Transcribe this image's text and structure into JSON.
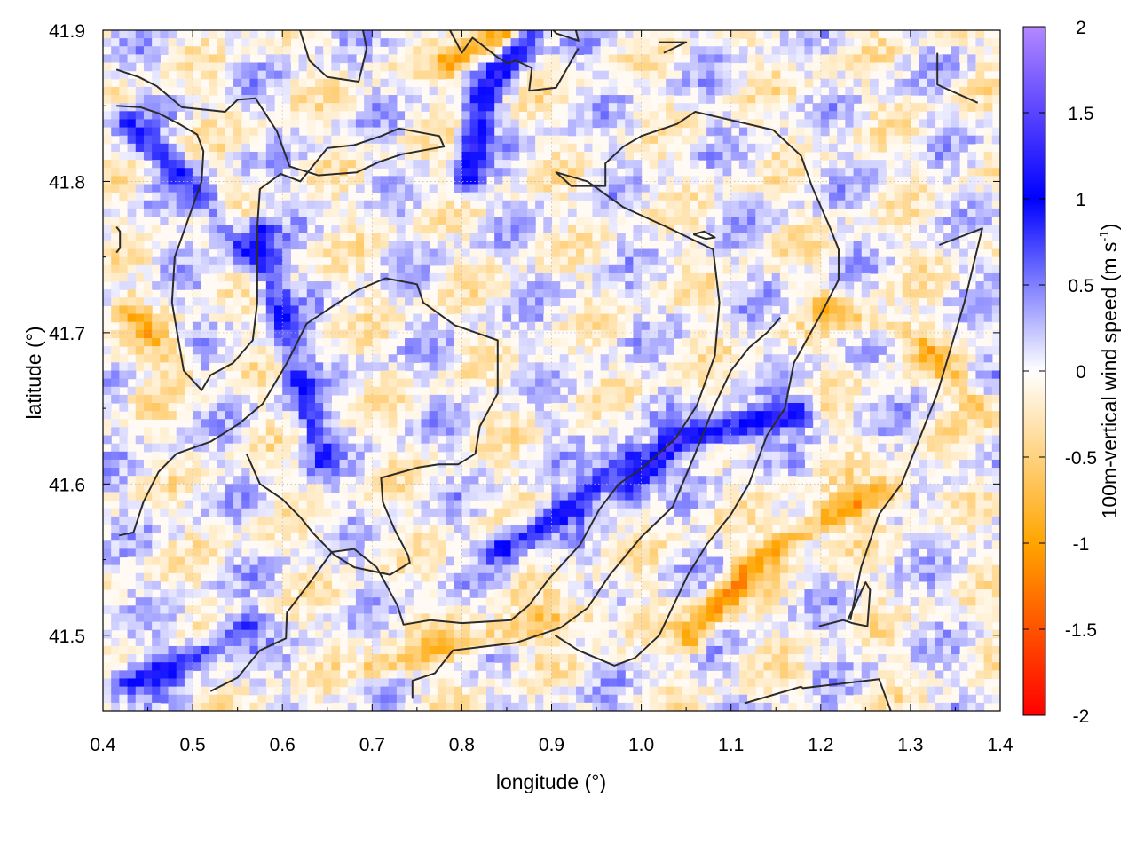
{
  "chart_data": {
    "type": "heatmap",
    "xlabel": "longitude (°)",
    "ylabel": "latitude (°)",
    "colorbar_label": "100m-vertical wind speed (m s",
    "colorbar_label_sup": "-1",
    "colorbar_label_end": ")",
    "xlim": [
      0.4,
      1.4
    ],
    "ylim": [
      41.45,
      41.9
    ],
    "x_ticks": [
      0.4,
      0.5,
      0.6,
      0.7,
      0.8,
      0.9,
      1.0,
      1.1,
      1.2,
      1.3,
      1.4
    ],
    "x_tick_labels": [
      "0.4",
      "0.5",
      "0.6",
      "0.7",
      "0.8",
      "0.9",
      "1.0",
      "1.1",
      "1.2",
      "1.3",
      "1.4"
    ],
    "y_ticks": [
      41.5,
      41.6,
      41.7,
      41.8,
      41.9
    ],
    "y_tick_labels": [
      "41.5",
      "41.6",
      "41.7",
      "41.8",
      "41.9"
    ],
    "colorbar_range": [
      -2,
      2
    ],
    "colorbar_ticks": [
      2,
      1.5,
      1,
      0.5,
      0,
      -0.5,
      -1,
      -1.5,
      -2
    ],
    "colorbar_tick_labels": [
      "2",
      "1.5",
      "1",
      "0.5",
      "0",
      "-0.5",
      "-1",
      "-1.5",
      "-2"
    ],
    "colorscale": [
      {
        "v": -2.0,
        "color": "#ff0000"
      },
      {
        "v": -1.0,
        "color": "#ffa500"
      },
      {
        "v": 0.0,
        "color": "#ffffff"
      },
      {
        "v": 1.0,
        "color": "#0000ff"
      },
      {
        "v": 2.0,
        "color": "#b388ff"
      }
    ],
    "grid": true,
    "features": [
      {
        "kind": "positive-band",
        "strength": 1.1,
        "points": [
          [
            0.98,
            41.6
          ],
          [
            1.03,
            41.63
          ],
          [
            1.1,
            41.64
          ],
          [
            1.17,
            41.65
          ]
        ]
      },
      {
        "kind": "positive-band",
        "strength": 0.9,
        "points": [
          [
            0.84,
            41.56
          ],
          [
            0.92,
            41.59
          ],
          [
            0.98,
            41.62
          ]
        ]
      },
      {
        "kind": "positive-band",
        "strength": 0.8,
        "points": [
          [
            0.41,
            41.47
          ],
          [
            0.5,
            41.49
          ],
          [
            0.56,
            41.51
          ]
        ]
      },
      {
        "kind": "positive-band",
        "strength": 0.7,
        "points": [
          [
            0.57,
            41.77
          ],
          [
            0.6,
            41.7
          ],
          [
            0.64,
            41.62
          ]
        ]
      },
      {
        "kind": "positive-band",
        "strength": 0.9,
        "points": [
          [
            0.8,
            41.8
          ],
          [
            0.82,
            41.86
          ],
          [
            0.87,
            41.9
          ]
        ]
      },
      {
        "kind": "positive-band",
        "strength": 0.6,
        "points": [
          [
            0.42,
            41.84
          ],
          [
            0.5,
            41.8
          ],
          [
            0.56,
            41.75
          ]
        ]
      },
      {
        "kind": "negative-band",
        "strength": 0.9,
        "points": [
          [
            1.05,
            41.5
          ],
          [
            1.12,
            41.55
          ],
          [
            1.2,
            41.58
          ],
          [
            1.28,
            41.6
          ]
        ]
      },
      {
        "kind": "negative-band",
        "strength": 0.6,
        "points": [
          [
            0.7,
            41.48
          ],
          [
            0.82,
            41.5
          ],
          [
            0.95,
            41.52
          ]
        ]
      },
      {
        "kind": "negative-band",
        "strength": 0.5,
        "points": [
          [
            1.2,
            41.72
          ],
          [
            1.3,
            41.7
          ],
          [
            1.38,
            41.65
          ]
        ]
      },
      {
        "kind": "negative-band",
        "strength": 0.5,
        "points": [
          [
            0.42,
            41.72
          ],
          [
            0.48,
            41.68
          ]
        ]
      },
      {
        "kind": "negative-band",
        "strength": 0.8,
        "points": [
          [
            0.78,
            41.88
          ],
          [
            0.84,
            41.9
          ]
        ]
      }
    ],
    "contours": [
      [
        [
          0.415,
          41.874
        ],
        [
          0.44,
          41.869
        ],
        [
          0.46,
          41.863
        ],
        [
          0.488,
          41.849
        ],
        [
          0.536,
          41.846
        ],
        [
          0.55,
          41.854
        ],
        [
          0.57,
          41.855
        ],
        [
          0.594,
          41.833
        ],
        [
          0.608,
          41.81
        ],
        [
          0.64,
          41.804
        ],
        [
          0.683,
          41.806
        ],
        [
          0.708,
          41.813
        ],
        [
          0.733,
          41.818
        ],
        [
          0.78,
          41.823
        ],
        [
          0.775,
          41.83
        ],
        [
          0.73,
          41.835
        ],
        [
          0.71,
          41.83
        ],
        [
          0.68,
          41.824
        ],
        [
          0.65,
          41.822
        ],
        [
          0.62,
          41.8
        ],
        [
          0.598,
          41.805
        ],
        [
          0.575,
          41.795
        ],
        [
          0.572,
          41.77
        ],
        [
          0.572,
          41.72
        ],
        [
          0.567,
          41.695
        ],
        [
          0.545,
          41.68
        ],
        [
          0.52,
          41.672
        ],
        [
          0.51,
          41.662
        ],
        [
          0.49,
          41.675
        ],
        [
          0.477,
          41.72
        ],
        [
          0.48,
          41.75
        ],
        [
          0.51,
          41.8
        ],
        [
          0.512,
          41.82
        ],
        [
          0.505,
          41.831
        ],
        [
          0.485,
          41.838
        ],
        [
          0.462,
          41.845
        ],
        [
          0.442,
          41.849
        ],
        [
          0.415,
          41.85
        ]
      ],
      [
        [
          0.415,
          41.77
        ],
        [
          0.419,
          41.767
        ],
        [
          0.419,
          41.756
        ],
        [
          0.415,
          41.753
        ]
      ],
      [
        [
          0.418,
          41.566
        ],
        [
          0.434,
          41.568
        ],
        [
          0.445,
          41.588
        ],
        [
          0.462,
          41.608
        ],
        [
          0.482,
          41.62
        ],
        [
          0.52,
          41.628
        ],
        [
          0.552,
          41.64
        ],
        [
          0.578,
          41.653
        ],
        [
          0.605,
          41.68
        ],
        [
          0.627,
          41.706
        ],
        [
          0.66,
          41.719
        ],
        [
          0.683,
          41.728
        ],
        [
          0.715,
          41.736
        ],
        [
          0.75,
          41.732
        ],
        [
          0.757,
          41.72
        ],
        [
          0.792,
          41.705
        ],
        [
          0.84,
          41.695
        ],
        [
          0.84,
          41.66
        ],
        [
          0.82,
          41.638
        ],
        [
          0.815,
          41.62
        ],
        [
          0.796,
          41.613
        ],
        [
          0.774,
          41.613
        ],
        [
          0.752,
          41.611
        ],
        [
          0.71,
          41.604
        ],
        [
          0.712,
          41.588
        ],
        [
          0.725,
          41.57
        ],
        [
          0.74,
          41.553
        ],
        [
          0.742,
          41.548
        ],
        [
          0.72,
          41.54
        ],
        [
          0.68,
          41.545
        ],
        [
          0.658,
          41.553
        ],
        [
          0.635,
          41.567
        ],
        [
          0.62,
          41.578
        ],
        [
          0.6,
          41.59
        ],
        [
          0.575,
          41.6
        ],
        [
          0.56,
          41.62
        ]
      ],
      [
        [
          0.52,
          41.463
        ],
        [
          0.55,
          41.472
        ],
        [
          0.575,
          41.49
        ],
        [
          0.604,
          41.498
        ],
        [
          0.605,
          41.515
        ],
        [
          0.632,
          41.536
        ],
        [
          0.655,
          41.555
        ],
        [
          0.68,
          41.557
        ],
        [
          0.705,
          41.545
        ],
        [
          0.728,
          41.52
        ],
        [
          0.735,
          41.507
        ],
        [
          0.765,
          41.51
        ],
        [
          0.8,
          41.508
        ],
        [
          0.855,
          41.51
        ],
        [
          0.875,
          41.52
        ],
        [
          0.898,
          41.538
        ],
        [
          0.932,
          41.56
        ],
        [
          0.953,
          41.583
        ],
        [
          0.975,
          41.6
        ],
        [
          1.0,
          41.61
        ],
        [
          1.038,
          41.63
        ],
        [
          1.062,
          41.652
        ],
        [
          1.082,
          41.685
        ],
        [
          1.087,
          41.72
        ],
        [
          1.08,
          41.755
        ],
        [
          1.028,
          41.77
        ],
        [
          0.98,
          41.783
        ],
        [
          0.94,
          41.8
        ],
        [
          0.905,
          41.806
        ],
        [
          0.922,
          41.797
        ],
        [
          0.96,
          41.797
        ],
        [
          0.96,
          41.812
        ],
        [
          0.98,
          41.823
        ],
        [
          1.0,
          41.83
        ],
        [
          1.04,
          41.838
        ],
        [
          1.06,
          41.846
        ],
        [
          1.104,
          41.84
        ],
        [
          1.147,
          41.834
        ],
        [
          1.178,
          41.817
        ],
        [
          1.19,
          41.797
        ],
        [
          1.21,
          41.77
        ],
        [
          1.22,
          41.755
        ],
        [
          1.22,
          41.735
        ],
        [
          1.2,
          41.712
        ],
        [
          1.17,
          41.68
        ],
        [
          1.16,
          41.65
        ],
        [
          1.14,
          41.632
        ],
        [
          1.12,
          41.6
        ],
        [
          1.1,
          41.58
        ],
        [
          1.073,
          41.56
        ],
        [
          1.052,
          41.54
        ],
        [
          1.02,
          41.5
        ],
        [
          0.993,
          41.485
        ],
        [
          0.97,
          41.48
        ],
        [
          0.93,
          41.49
        ],
        [
          0.904,
          41.5
        ]
      ],
      [
        [
          0.745,
          41.458
        ],
        [
          0.745,
          41.47
        ],
        [
          0.77,
          41.475
        ],
        [
          0.79,
          41.49
        ],
        [
          0.86,
          41.495
        ],
        [
          0.885,
          41.5
        ],
        [
          0.91,
          41.505
        ],
        [
          0.94,
          41.518
        ],
        [
          0.965,
          41.54
        ],
        [
          1.0,
          41.565
        ],
        [
          1.035,
          41.585
        ],
        [
          1.06,
          41.62
        ],
        [
          1.08,
          41.65
        ],
        [
          1.1,
          41.675
        ],
        [
          1.12,
          41.69
        ],
        [
          1.14,
          41.7
        ],
        [
          1.155,
          41.71
        ]
      ],
      [
        [
          1.115,
          41.455
        ],
        [
          1.178,
          41.466
        ],
        [
          1.18,
          41.465
        ],
        [
          1.265,
          41.471
        ],
        [
          1.278,
          41.45
        ]
      ],
      [
        [
          1.198,
          41.506
        ],
        [
          1.225,
          41.51
        ],
        [
          1.235,
          41.508
        ],
        [
          1.252,
          41.506
        ],
        [
          1.255,
          41.53
        ],
        [
          1.25,
          41.535
        ],
        [
          1.23,
          41.51
        ]
      ],
      [
        [
          1.33,
          41.885
        ],
        [
          1.33,
          41.864
        ],
        [
          1.375,
          41.852
        ]
      ],
      [
        [
          1.058,
          41.765
        ],
        [
          1.07,
          41.767
        ],
        [
          1.082,
          41.763
        ],
        [
          1.072,
          41.762
        ],
        [
          1.058,
          41.765
        ]
      ],
      [
        [
          1.332,
          41.758
        ],
        [
          1.38,
          41.769
        ],
        [
          1.36,
          41.72
        ],
        [
          1.35,
          41.7
        ],
        [
          1.33,
          41.66
        ],
        [
          1.31,
          41.63
        ],
        [
          1.29,
          41.6
        ],
        [
          1.265,
          41.58
        ],
        [
          1.245,
          41.545
        ],
        [
          1.233,
          41.51
        ]
      ],
      [
        [
          0.617,
          41.905
        ],
        [
          0.63,
          41.88
        ],
        [
          0.65,
          41.869
        ],
        [
          0.685,
          41.866
        ],
        [
          0.694,
          41.888
        ],
        [
          0.688,
          41.905
        ]
      ],
      [
        [
          0.785,
          41.902
        ],
        [
          0.8,
          41.885
        ],
        [
          0.812,
          41.895
        ],
        [
          0.84,
          41.882
        ],
        [
          0.852,
          41.878
        ],
        [
          0.86,
          41.88
        ],
        [
          0.878,
          41.875
        ],
        [
          0.875,
          41.86
        ],
        [
          0.905,
          41.862
        ],
        [
          0.93,
          41.888
        ]
      ],
      [
        [
          1.025,
          41.885
        ],
        [
          1.05,
          41.892
        ],
        [
          1.02,
          41.892
        ]
      ],
      [
        [
          0.895,
          41.905
        ],
        [
          0.905,
          41.898
        ],
        [
          0.93,
          41.893
        ],
        [
          0.925,
          41.905
        ]
      ]
    ]
  }
}
